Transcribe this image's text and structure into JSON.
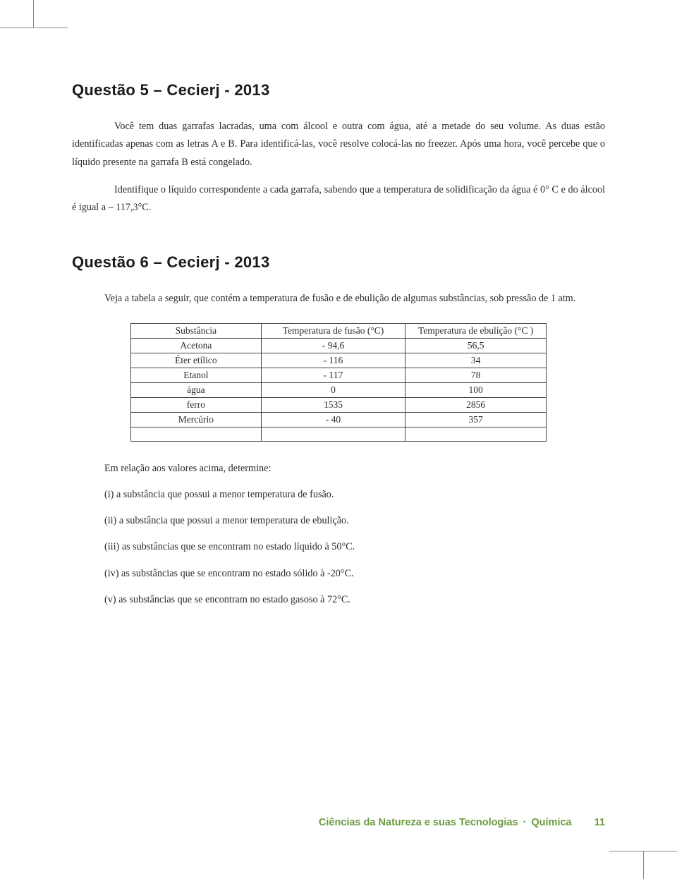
{
  "q5": {
    "title": "Questão 5 – Cecierj - 2013",
    "para1": "Você tem duas garrafas lacradas, uma com álcool e outra com água, até a metade do seu volume. As duas estão identificadas apenas com as letras A e B. Para identificá-las, você resolve colocá-las no freezer. Após uma hora, você percebe que o líquido presente na garrafa B está congelado.",
    "para2": "Identifique o líquido correspondente a cada garrafa, sabendo que a temperatura de solidificação da água é 0° C e do álcool é igual a – 117,3°C."
  },
  "q6": {
    "title": "Questão 6 – Cecierj - 2013",
    "intro": "Veja a tabela a seguir, que contém a temperatura de fusão e de ebulição de algumas substâncias, sob pressão de 1 atm.",
    "table": {
      "headers": [
        "Substância",
        "Temperatura de fusão (°C)",
        "Temperatura de ebulição (°C )"
      ],
      "rows": [
        [
          "Acetona",
          "- 94,6",
          "56,5"
        ],
        [
          "Éter etílico",
          "- 116",
          "34"
        ],
        [
          "Etanol",
          "- 117",
          "78"
        ],
        [
          "água",
          "0",
          "100"
        ],
        [
          "ferro",
          "1535",
          "2856"
        ],
        [
          "Mercúrio",
          "- 40",
          "357"
        ]
      ]
    },
    "prompt": "Em relação aos valores acima, determine:",
    "items": [
      "(i) a substância que possui a menor temperatura de fusão.",
      "(ii) a substância que possui a menor temperatura de ebulição.",
      "(iii) as substâncias que se encontram no estado líquido à 50°C.",
      "(iv) as substâncias que se encontram no estado sólido à -20°C.",
      "(v) as substâncias que se encontram no estado gasoso à 72°C."
    ]
  },
  "footer": {
    "subject": "Ciências da Natureza e suas Tecnologias",
    "discipline": "Química",
    "page": "11"
  },
  "colors": {
    "text": "#2b2b2b",
    "heading": "#1a1a1a",
    "accent_green": "#6a9b3f",
    "table_border": "#444444",
    "crop_mark": "#8a8a8a",
    "background": "#ffffff"
  }
}
